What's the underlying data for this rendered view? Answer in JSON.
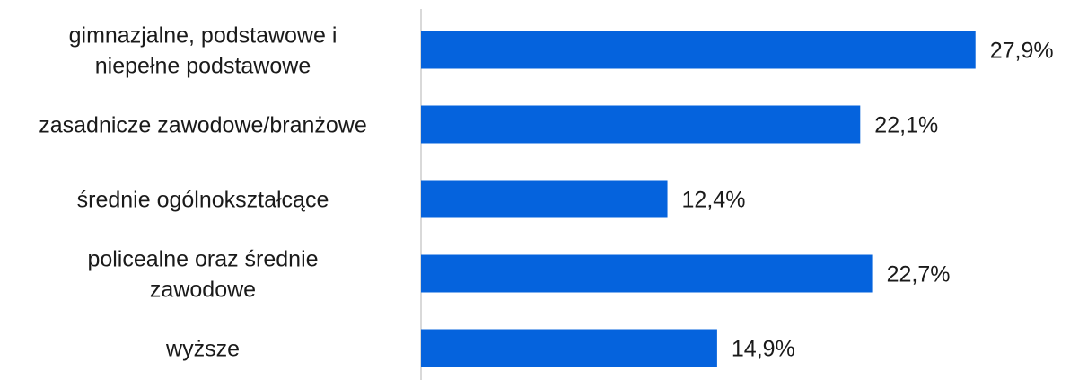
{
  "chart_data": {
    "type": "bar",
    "orientation": "horizontal",
    "categories": [
      [
        "gimnazjalne, podstawowe i",
        "niepełne podstawowe"
      ],
      [
        "zasadnicze zawodowe/branżowe"
      ],
      [
        "średnie ogólnokształcące"
      ],
      [
        "policealne oraz średnie",
        "zawodowe"
      ],
      [
        "wyższe"
      ]
    ],
    "values": [
      27.9,
      22.1,
      12.4,
      22.7,
      14.9
    ],
    "value_labels": [
      "27,9%",
      "22,1%",
      "12,4%",
      "22,7%",
      "14,9%"
    ],
    "xlim": [
      0,
      28.5
    ],
    "grid": false,
    "legend": "none",
    "bar_color": "#0563DD",
    "axis_color": "#D9D9D9"
  }
}
